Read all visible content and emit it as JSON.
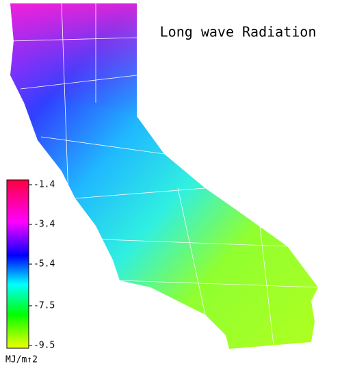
{
  "title": "Long wave Radiation",
  "colorbar": {
    "clim": [
      -9.5,
      -1.4
    ],
    "ticks": [
      -1.4,
      -3.4,
      -5.4,
      -7.5,
      -9.5
    ],
    "unit": "MJ/m↑2"
  }
}
